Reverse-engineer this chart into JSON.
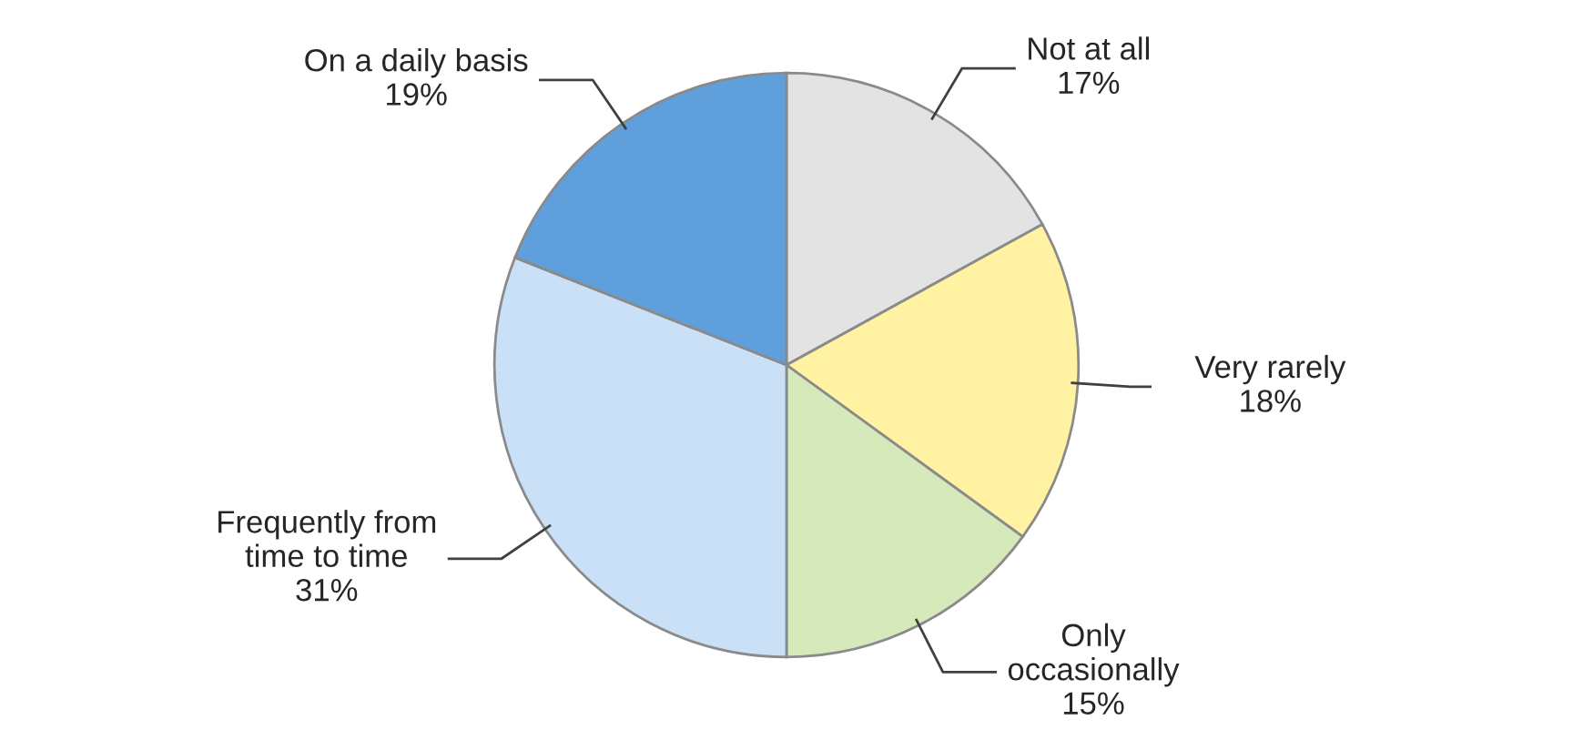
{
  "chart_data": {
    "type": "pie",
    "categories": [
      "Not at all",
      "Very rarely",
      "Only\noccasionally",
      "Frequently from\ntime to time",
      "On a daily basis"
    ],
    "values": [
      17,
      18,
      15,
      31,
      19
    ],
    "value_labels": [
      "17%",
      "18%",
      "15%",
      "31%",
      "19%"
    ],
    "colors": [
      "#e3e3e3",
      "#fff2a3",
      "#d5e9bb",
      "#c9e0f7",
      "#5fa0dc"
    ],
    "legend": false
  }
}
